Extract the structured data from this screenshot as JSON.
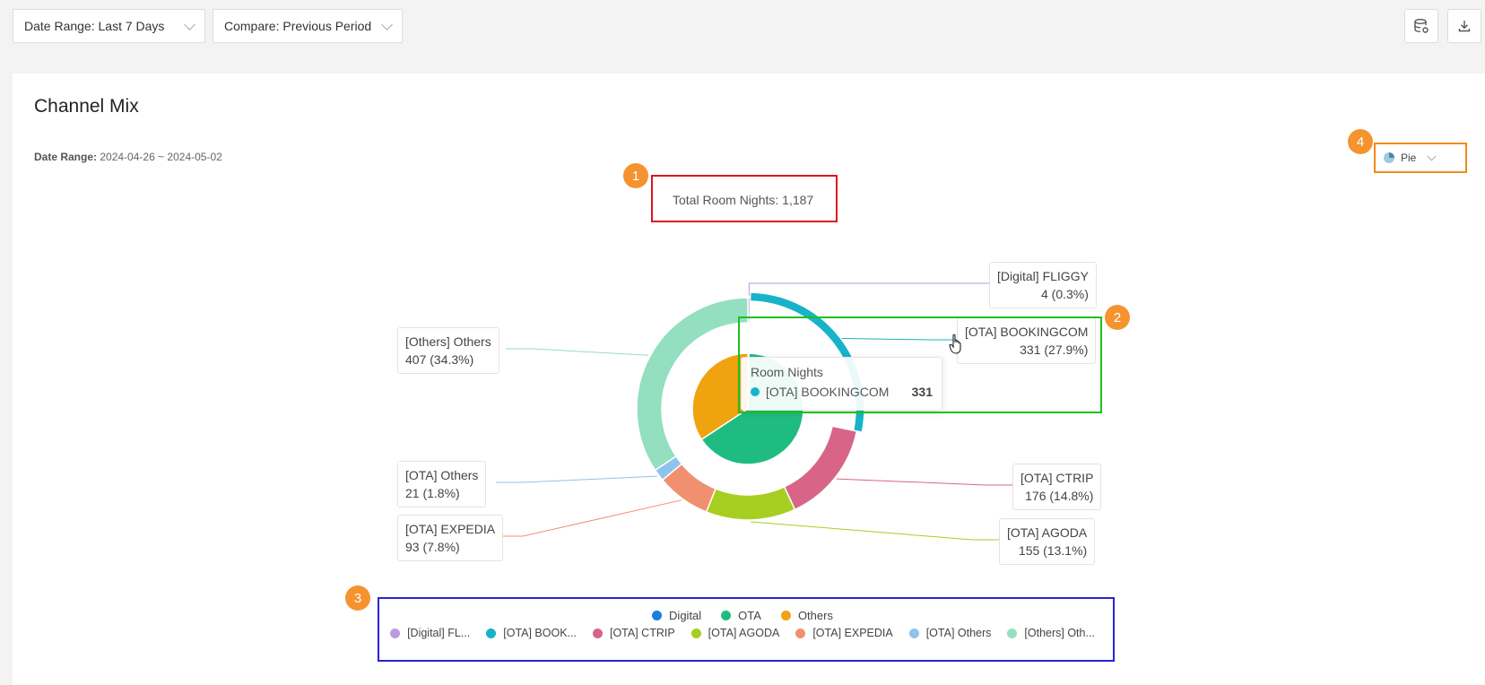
{
  "toolbar": {
    "date_range": "Date Range: Last 7 Days",
    "compare": "Compare: Previous Period",
    "data_icon": "database-settings-icon",
    "download_icon": "download-icon"
  },
  "card": {
    "title": "Channel Mix",
    "date_range_label": "Date Range:",
    "date_range_value": "2024-04-26 ~ 2024-05-02",
    "chart_type_label": "Pie"
  },
  "badges": [
    "1",
    "2",
    "3",
    "4"
  ],
  "tooltip": {
    "title": "Room Nights",
    "series": "[OTA] BOOKINGCOM",
    "value": "331"
  },
  "colors": {
    "Digital": "#1a7de0",
    "OTA": "#1fbc82",
    "Others": "#f0a30f",
    "[Digital] FLIGGY": "#b99be0",
    "[OTA] BOOKINGCOM": "#17b3c9",
    "[OTA] CTRIP": "#d86588",
    "[OTA] AGODA": "#a6cf21",
    "[OTA] EXPEDIA": "#f0906e",
    "[OTA] Others": "#8fc3ef",
    "[Others] Others": "#93dfc0"
  },
  "chart_data": {
    "type": "pie",
    "title": "Total Room Nights: 1,187",
    "total": 1187,
    "inner": [
      {
        "name": "Digital",
        "value": 4
      },
      {
        "name": "OTA",
        "value": 776
      },
      {
        "name": "Others",
        "value": 407
      }
    ],
    "outer": [
      {
        "name": "[Digital] FLIGGY",
        "value": 4,
        "pct": "0.3%",
        "label": "[Digital] FLIGGY",
        "sub": "4 (0.3%)"
      },
      {
        "name": "[OTA] BOOKINGCOM",
        "value": 331,
        "pct": "27.9%",
        "label": "[OTA] BOOKINGCOM",
        "sub": "331 (27.9%)"
      },
      {
        "name": "[OTA] CTRIP",
        "value": 176,
        "pct": "14.8%",
        "label": "[OTA] CTRIP",
        "sub": "176 (14.8%)"
      },
      {
        "name": "[OTA] AGODA",
        "value": 155,
        "pct": "13.1%",
        "label": "[OTA] AGODA",
        "sub": "155 (13.1%)"
      },
      {
        "name": "[OTA] EXPEDIA",
        "value": 93,
        "pct": "7.8%",
        "label": "[OTA] EXPEDIA",
        "sub": "93 (7.8%)"
      },
      {
        "name": "[OTA] Others",
        "value": 21,
        "pct": "1.8%",
        "label": "[OTA] Others",
        "sub": "21 (1.8%)"
      },
      {
        "name": "[Others] Others",
        "value": 407,
        "pct": "34.3%",
        "label": "[Others] Others",
        "sub": "407 (34.3%)"
      }
    ],
    "legend_groups": [
      "Digital",
      "OTA",
      "Others"
    ],
    "legend_items": [
      "[Digital] FL...",
      "[OTA] BOOK...",
      "[OTA] CTRIP",
      "[OTA] AGODA",
      "[OTA] EXPEDIA",
      "[OTA] Others",
      "[Others] Oth..."
    ]
  }
}
